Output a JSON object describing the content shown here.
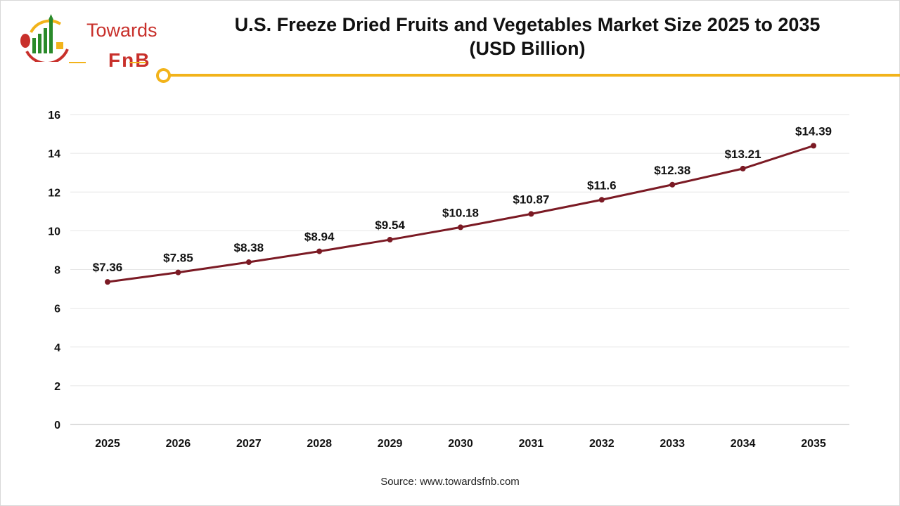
{
  "logo": {
    "line1": "Towards",
    "line2": "FnB"
  },
  "title_line1": "U.S. Freeze Dried Fruits and Vegetables Market Size 2025 to 2035",
  "title_line2": "(USD Billion)",
  "source": "Source: www.towardsfnb.com",
  "colors": {
    "line": "#7b1a24",
    "accent": "#f2b31a",
    "brand": "#c8302b"
  },
  "chart_data": {
    "type": "line",
    "title": "U.S. Freeze Dried Fruits and Vegetables Market Size 2025 to 2035 (USD Billion)",
    "categories": [
      "2025",
      "2026",
      "2027",
      "2028",
      "2029",
      "2030",
      "2031",
      "2032",
      "2033",
      "2034",
      "2035"
    ],
    "values": [
      7.36,
      7.85,
      8.38,
      8.94,
      9.54,
      10.18,
      10.87,
      11.6,
      12.38,
      13.21,
      14.39
    ],
    "data_labels": [
      "$7.36",
      "$7.85",
      "$8.38",
      "$8.94",
      "$9.54",
      "$10.18",
      "$10.87",
      "$11.6",
      "$12.38",
      "$13.21",
      "$14.39"
    ],
    "yticks": [
      "0",
      "2",
      "4",
      "6",
      "8",
      "10",
      "12",
      "14",
      "16"
    ],
    "ylim": [
      0,
      16
    ],
    "grid": true,
    "legend": "none",
    "xlabel": "",
    "ylabel": ""
  }
}
